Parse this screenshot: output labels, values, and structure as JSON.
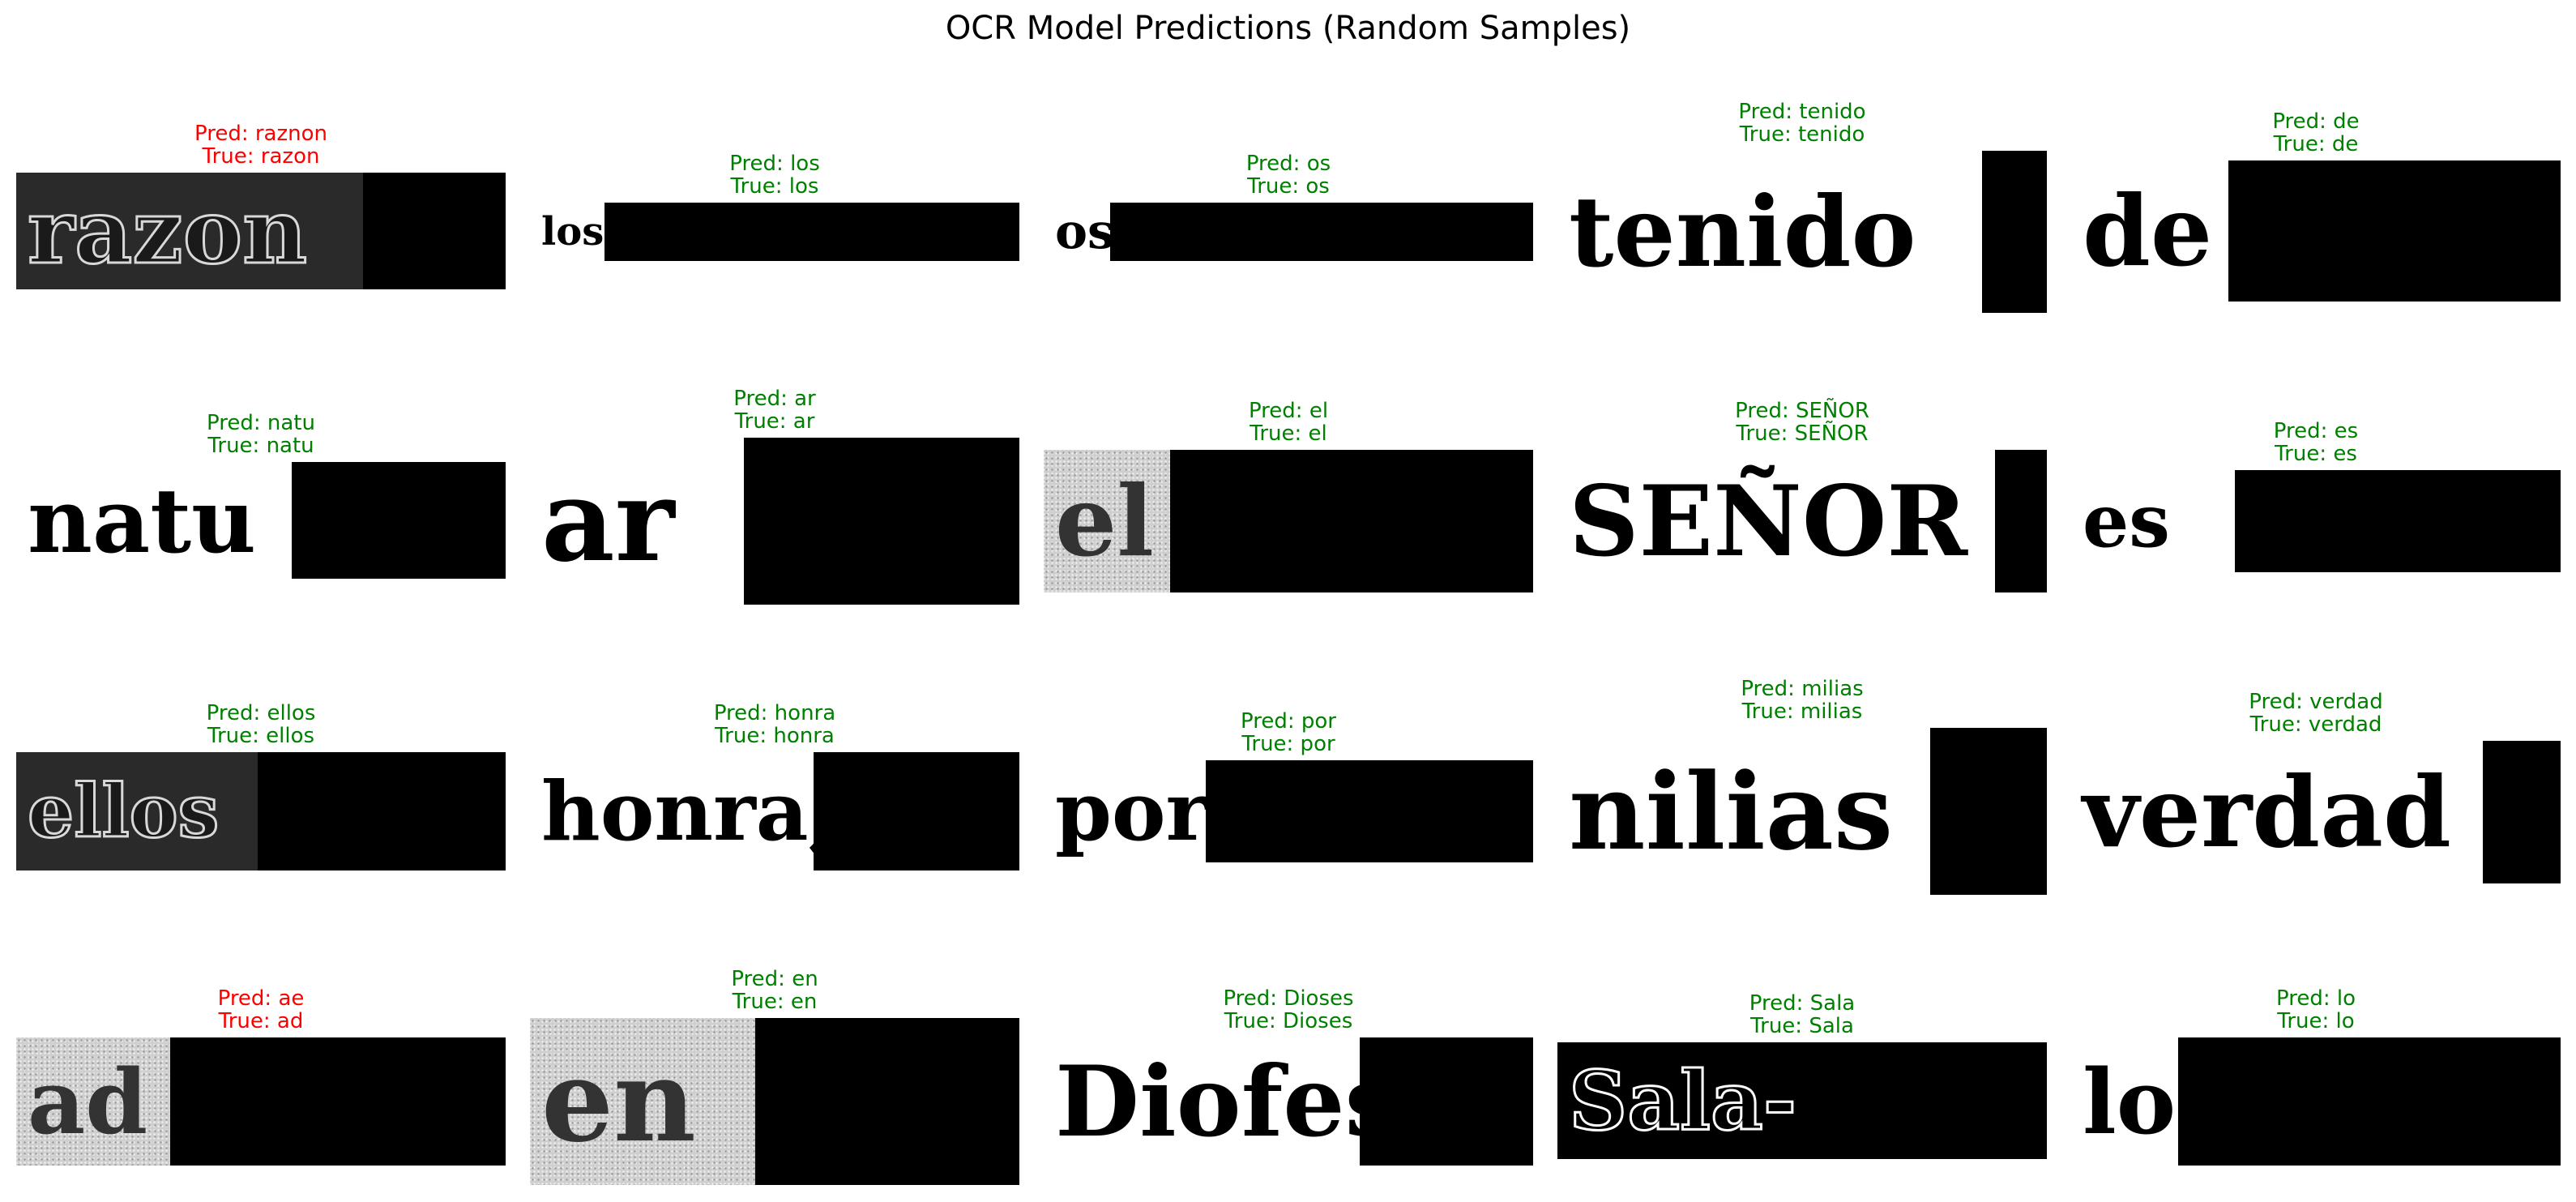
{
  "title": "OCR Model Predictions (Random Samples)",
  "samples": [
    {
      "pred": "Pred: raznon",
      "true": "True: razon",
      "correct": false,
      "word": "razon"
    },
    {
      "pred": "Pred: los",
      "true": "True: los",
      "correct": true,
      "word": "los"
    },
    {
      "pred": "Pred: os",
      "true": "True: os",
      "correct": true,
      "word": "os"
    },
    {
      "pred": "Pred: tenido",
      "true": "True: tenido",
      "correct": true,
      "word": "tenido"
    },
    {
      "pred": "Pred: de",
      "true": "True: de",
      "correct": true,
      "word": "de"
    },
    {
      "pred": "Pred: natu",
      "true": "True: natu",
      "correct": true,
      "word": "natu"
    },
    {
      "pred": "Pred: ar",
      "true": "True: ar",
      "correct": true,
      "word": "ar"
    },
    {
      "pred": "Pred: el",
      "true": "True: el",
      "correct": true,
      "word": "el"
    },
    {
      "pred": "Pred: SEÑOR",
      "true": "True: SEÑOR",
      "correct": true,
      "word": "SEÑOR"
    },
    {
      "pred": "Pred: es",
      "true": "True: es",
      "correct": true,
      "word": "es"
    },
    {
      "pred": "Pred: ellos",
      "true": "True: ellos",
      "correct": true,
      "word": "ellos"
    },
    {
      "pred": "Pred: honra",
      "true": "True: honra",
      "correct": true,
      "word": "honra,"
    },
    {
      "pred": "Pred: por",
      "true": "True: por",
      "correct": true,
      "word": "por"
    },
    {
      "pred": "Pred: milias",
      "true": "True: milias",
      "correct": true,
      "word": "nilias"
    },
    {
      "pred": "Pred: verdad",
      "true": "True: verdad",
      "correct": true,
      "word": "verdad"
    },
    {
      "pred": "Pred: ae",
      "true": "True: ad",
      "correct": false,
      "word": "ad"
    },
    {
      "pred": "Pred: en",
      "true": "True: en",
      "correct": true,
      "word": "en"
    },
    {
      "pred": "Pred: Dioses",
      "true": "True: Dioses",
      "correct": true,
      "word": "Diofes"
    },
    {
      "pred": "Pred: Sala",
      "true": "True: Sala",
      "correct": true,
      "word": "Sala-"
    },
    {
      "pred": "Pred: lo",
      "true": "True: lo",
      "correct": true,
      "word": "lo"
    }
  ]
}
